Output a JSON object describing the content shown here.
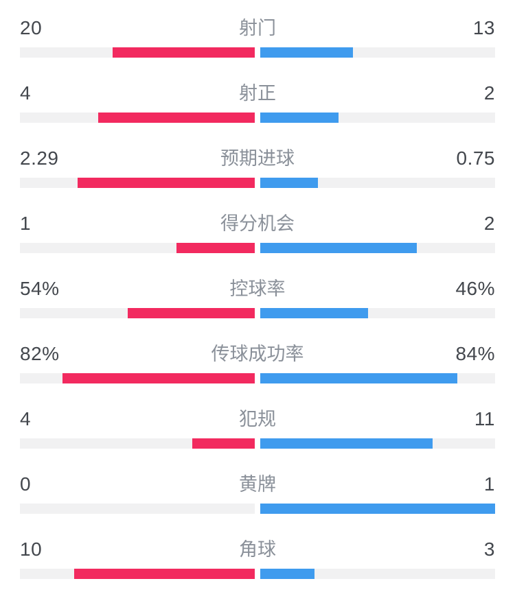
{
  "page": {
    "background": "#ffffff"
  },
  "colors": {
    "home_bar": "#f22a5f",
    "away_bar": "#3f9bee",
    "track": "#f1f1f2",
    "label_text": "#8a9099",
    "value_text": "#43474d",
    "divider": "#ececec"
  },
  "chart_data": {
    "type": "bar",
    "orientation": "horizontal-diverging",
    "description_layout": "center labels, home value left (pink bar grows leftward from center), away value right (blue bar grows rightward from center)",
    "categories": [
      "射门",
      "射正",
      "预期进球",
      "得分机会",
      "控球率",
      "传球成功率",
      "犯规",
      "黄牌",
      "角球"
    ],
    "series": [
      {
        "name": "home",
        "color": "#f22a5f",
        "values": [
          "20",
          "4",
          "2.29",
          "1",
          "54%",
          "82%",
          "4",
          "0",
          "10"
        ]
      },
      {
        "name": "away",
        "color": "#3f9bee",
        "values": [
          "13",
          "2",
          "0.75",
          "2",
          "46%",
          "84%",
          "11",
          "1",
          "3"
        ]
      }
    ],
    "rows": [
      {
        "label": "射门",
        "left": "20",
        "right": "13",
        "left_pct": 60.6,
        "right_pct": 39.4
      },
      {
        "label": "射正",
        "left": "4",
        "right": "2",
        "left_pct": 66.7,
        "right_pct": 33.3
      },
      {
        "label": "预期进球",
        "left": "2.29",
        "right": "0.75",
        "left_pct": 75.3,
        "right_pct": 24.7
      },
      {
        "label": "得分机会",
        "left": "1",
        "right": "2",
        "left_pct": 33.3,
        "right_pct": 66.7
      },
      {
        "label": "控球率",
        "left": "54%",
        "right": "46%",
        "left_pct": 54,
        "right_pct": 46
      },
      {
        "label": "传球成功率",
        "left": "82%",
        "right": "84%",
        "left_pct": 82,
        "right_pct": 84
      },
      {
        "label": "犯规",
        "left": "4",
        "right": "11",
        "left_pct": 26.7,
        "right_pct": 73.3
      },
      {
        "label": "黄牌",
        "left": "0",
        "right": "1",
        "left_pct": 0,
        "right_pct": 100
      },
      {
        "label": "角球",
        "left": "10",
        "right": "3",
        "left_pct": 76.9,
        "right_pct": 23.1
      }
    ]
  }
}
